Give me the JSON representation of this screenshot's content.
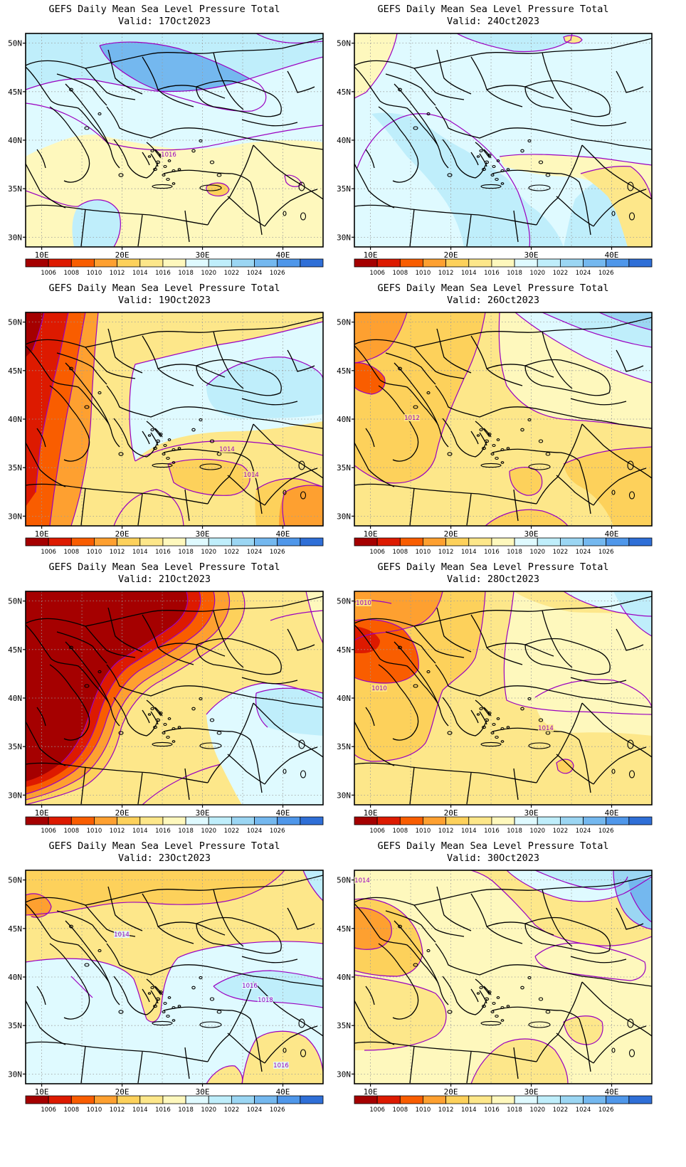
{
  "legend_levels": [
    "1006",
    "1008",
    "1010",
    "1012",
    "1014",
    "1016",
    "1018",
    "1020",
    "1022",
    "1024",
    "1026"
  ],
  "legend_colors": [
    "#a50000",
    "#dd1a00",
    "#f95d00",
    "#fea030",
    "#fdd15b",
    "#fde78a",
    "#fef8bd",
    "#dffaff",
    "#bfeefb",
    "#9bd6f3",
    "#74b8ef",
    "#4f97ea",
    "#2f6fd7"
  ],
  "lat_labels": [
    "50N",
    "45N",
    "40N",
    "35N",
    "30N"
  ],
  "lon_labels": [
    "10E",
    "20E",
    "30E",
    "40E"
  ],
  "contour_color": "#9a00c0",
  "panels": [
    {
      "title": "GEFS Daily Mean Sea Level Pressure Total",
      "valid": "Valid: 17Oct2023",
      "labels": [
        {
          "text": "1016"
        }
      ]
    },
    {
      "title": "GEFS Daily Mean Sea Level Pressure Total",
      "valid": "Valid: 24Oct2023",
      "labels": []
    },
    {
      "title": "GEFS Daily Mean Sea Level Pressure Total",
      "valid": "Valid: 19Oct2023",
      "labels": [
        {
          "text": "1014"
        },
        {
          "text": "1014"
        }
      ]
    },
    {
      "title": "GEFS Daily Mean Sea Level Pressure Total",
      "valid": "Valid: 26Oct2023",
      "labels": [
        {
          "text": "1012"
        }
      ]
    },
    {
      "title": "GEFS Daily Mean Sea Level Pressure Total",
      "valid": "Valid: 21Oct2023",
      "labels": []
    },
    {
      "title": "GEFS Daily Mean Sea Level Pressure Total",
      "valid": "Valid: 28Oct2023",
      "labels": [
        {
          "text": "1010"
        },
        {
          "text": "1010"
        },
        {
          "text": "1014"
        }
      ]
    },
    {
      "title": "GEFS Daily Mean Sea Level Pressure Total",
      "valid": "Valid: 23Oct2023",
      "labels": [
        {
          "text": "1014"
        },
        {
          "text": "1016"
        },
        {
          "text": "1018"
        },
        {
          "text": "1016"
        }
      ]
    },
    {
      "title": "GEFS Daily Mean Sea Level Pressure Total",
      "valid": "Valid: 30Oct2023",
      "labels": [
        {
          "text": "1014"
        }
      ]
    }
  ]
}
